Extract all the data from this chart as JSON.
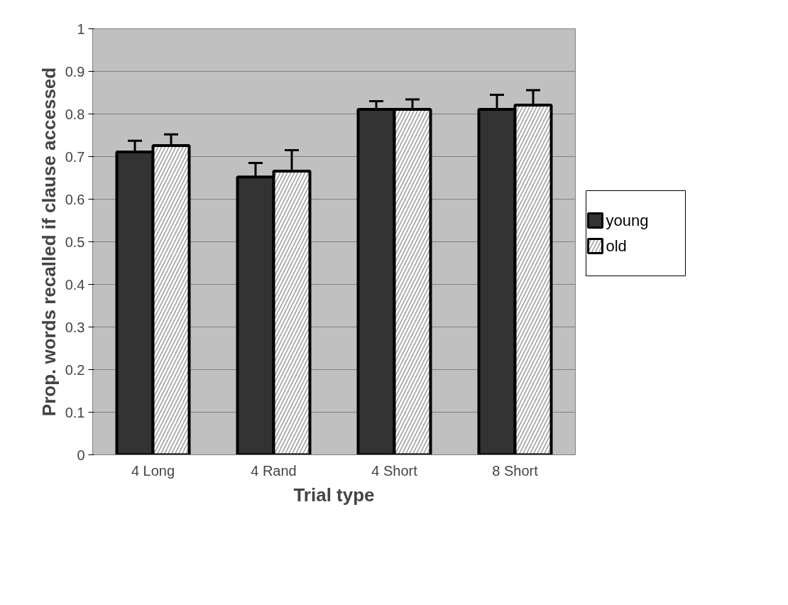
{
  "chart_data": {
    "type": "bar",
    "xlabel": "Trial type",
    "ylabel": "Prop. words recalled if clause accessed",
    "categories": [
      "4 Long",
      "4 Rand",
      "4 Short",
      "8 Short"
    ],
    "series": [
      {
        "name": "young",
        "color": "#333333",
        "values": [
          0.711,
          0.652,
          0.811,
          0.811
        ],
        "errors": [
          0.026,
          0.033,
          0.019,
          0.034
        ]
      },
      {
        "name": "old",
        "color": "#9a9a9a",
        "values": [
          0.726,
          0.666,
          0.811,
          0.821
        ],
        "errors": [
          0.026,
          0.049,
          0.023,
          0.035
        ]
      }
    ],
    "ylim": [
      0,
      1
    ],
    "yticks": [
      0,
      0.1,
      0.2,
      0.3,
      0.4,
      0.5,
      0.6,
      0.7,
      0.8,
      0.9,
      1
    ],
    "grid": "y",
    "legend": "right"
  }
}
